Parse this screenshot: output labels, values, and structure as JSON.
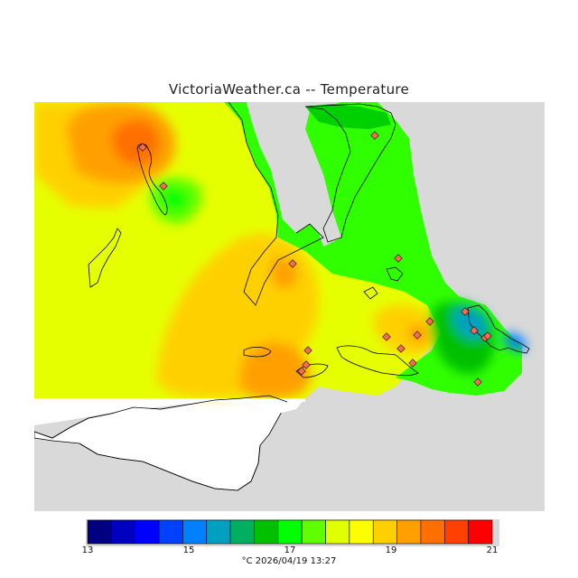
{
  "title": "VictoriaWeather.ca -- Temperature",
  "legend": {
    "colors": [
      "#000080",
      "#0000c0",
      "#0000ff",
      "#0040ff",
      "#0080ff",
      "#00a0c0",
      "#00b060",
      "#00c000",
      "#00ff00",
      "#60ff00",
      "#e0ff00",
      "#ffff00",
      "#ffd000",
      "#ffa000",
      "#ff7000",
      "#ff4000",
      "#ff0000"
    ],
    "ticks": [
      {
        "value": 13,
        "label": "13"
      },
      {
        "value": 15,
        "label": "15"
      },
      {
        "value": 17,
        "label": "17"
      },
      {
        "value": 19,
        "label": "19"
      },
      {
        "value": 21,
        "label": "21"
      }
    ],
    "min": 13,
    "max": 21
  },
  "caption": "°C  2026/04/19 13:27",
  "stations_count_visible": 18
}
